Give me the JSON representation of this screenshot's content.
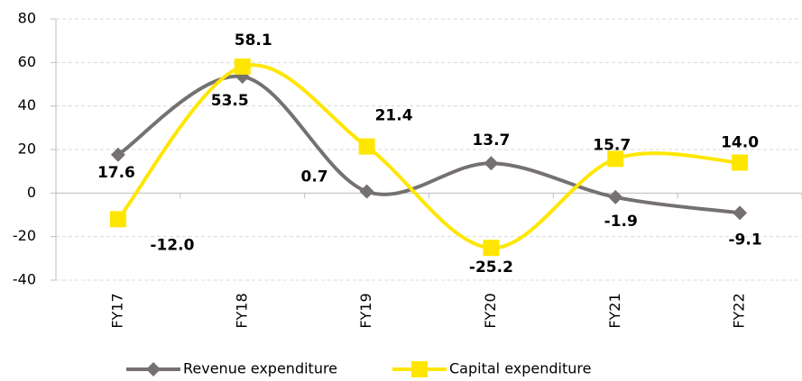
{
  "chart_data": {
    "type": "line",
    "categories": [
      "FY17",
      "FY18",
      "FY19",
      "FY20",
      "FY21",
      "FY22"
    ],
    "series": [
      {
        "name": "Revenue expenditure",
        "color": "#767171",
        "marker": "diamond",
        "values": [
          17.6,
          53.5,
          0.7,
          13.7,
          -1.9,
          -9.1
        ],
        "value_labels": [
          "17.6",
          "53.5",
          "0.7",
          "13.7",
          "-1.9",
          "-9.1"
        ]
      },
      {
        "name": "Capital expenditure",
        "color": "#FFE600",
        "marker": "square",
        "values": [
          -12.0,
          58.1,
          21.4,
          -25.2,
          15.7,
          14.0
        ],
        "value_labels": [
          "-12.0",
          "58.1",
          "21.4",
          "-25.2",
          "15.7",
          "14.0"
        ]
      }
    ],
    "ylim": [
      -40,
      80
    ],
    "yticks": [
      -40,
      -20,
      0,
      20,
      40,
      60,
      80
    ],
    "grid": true,
    "smooth": true,
    "legend": "bottom"
  }
}
